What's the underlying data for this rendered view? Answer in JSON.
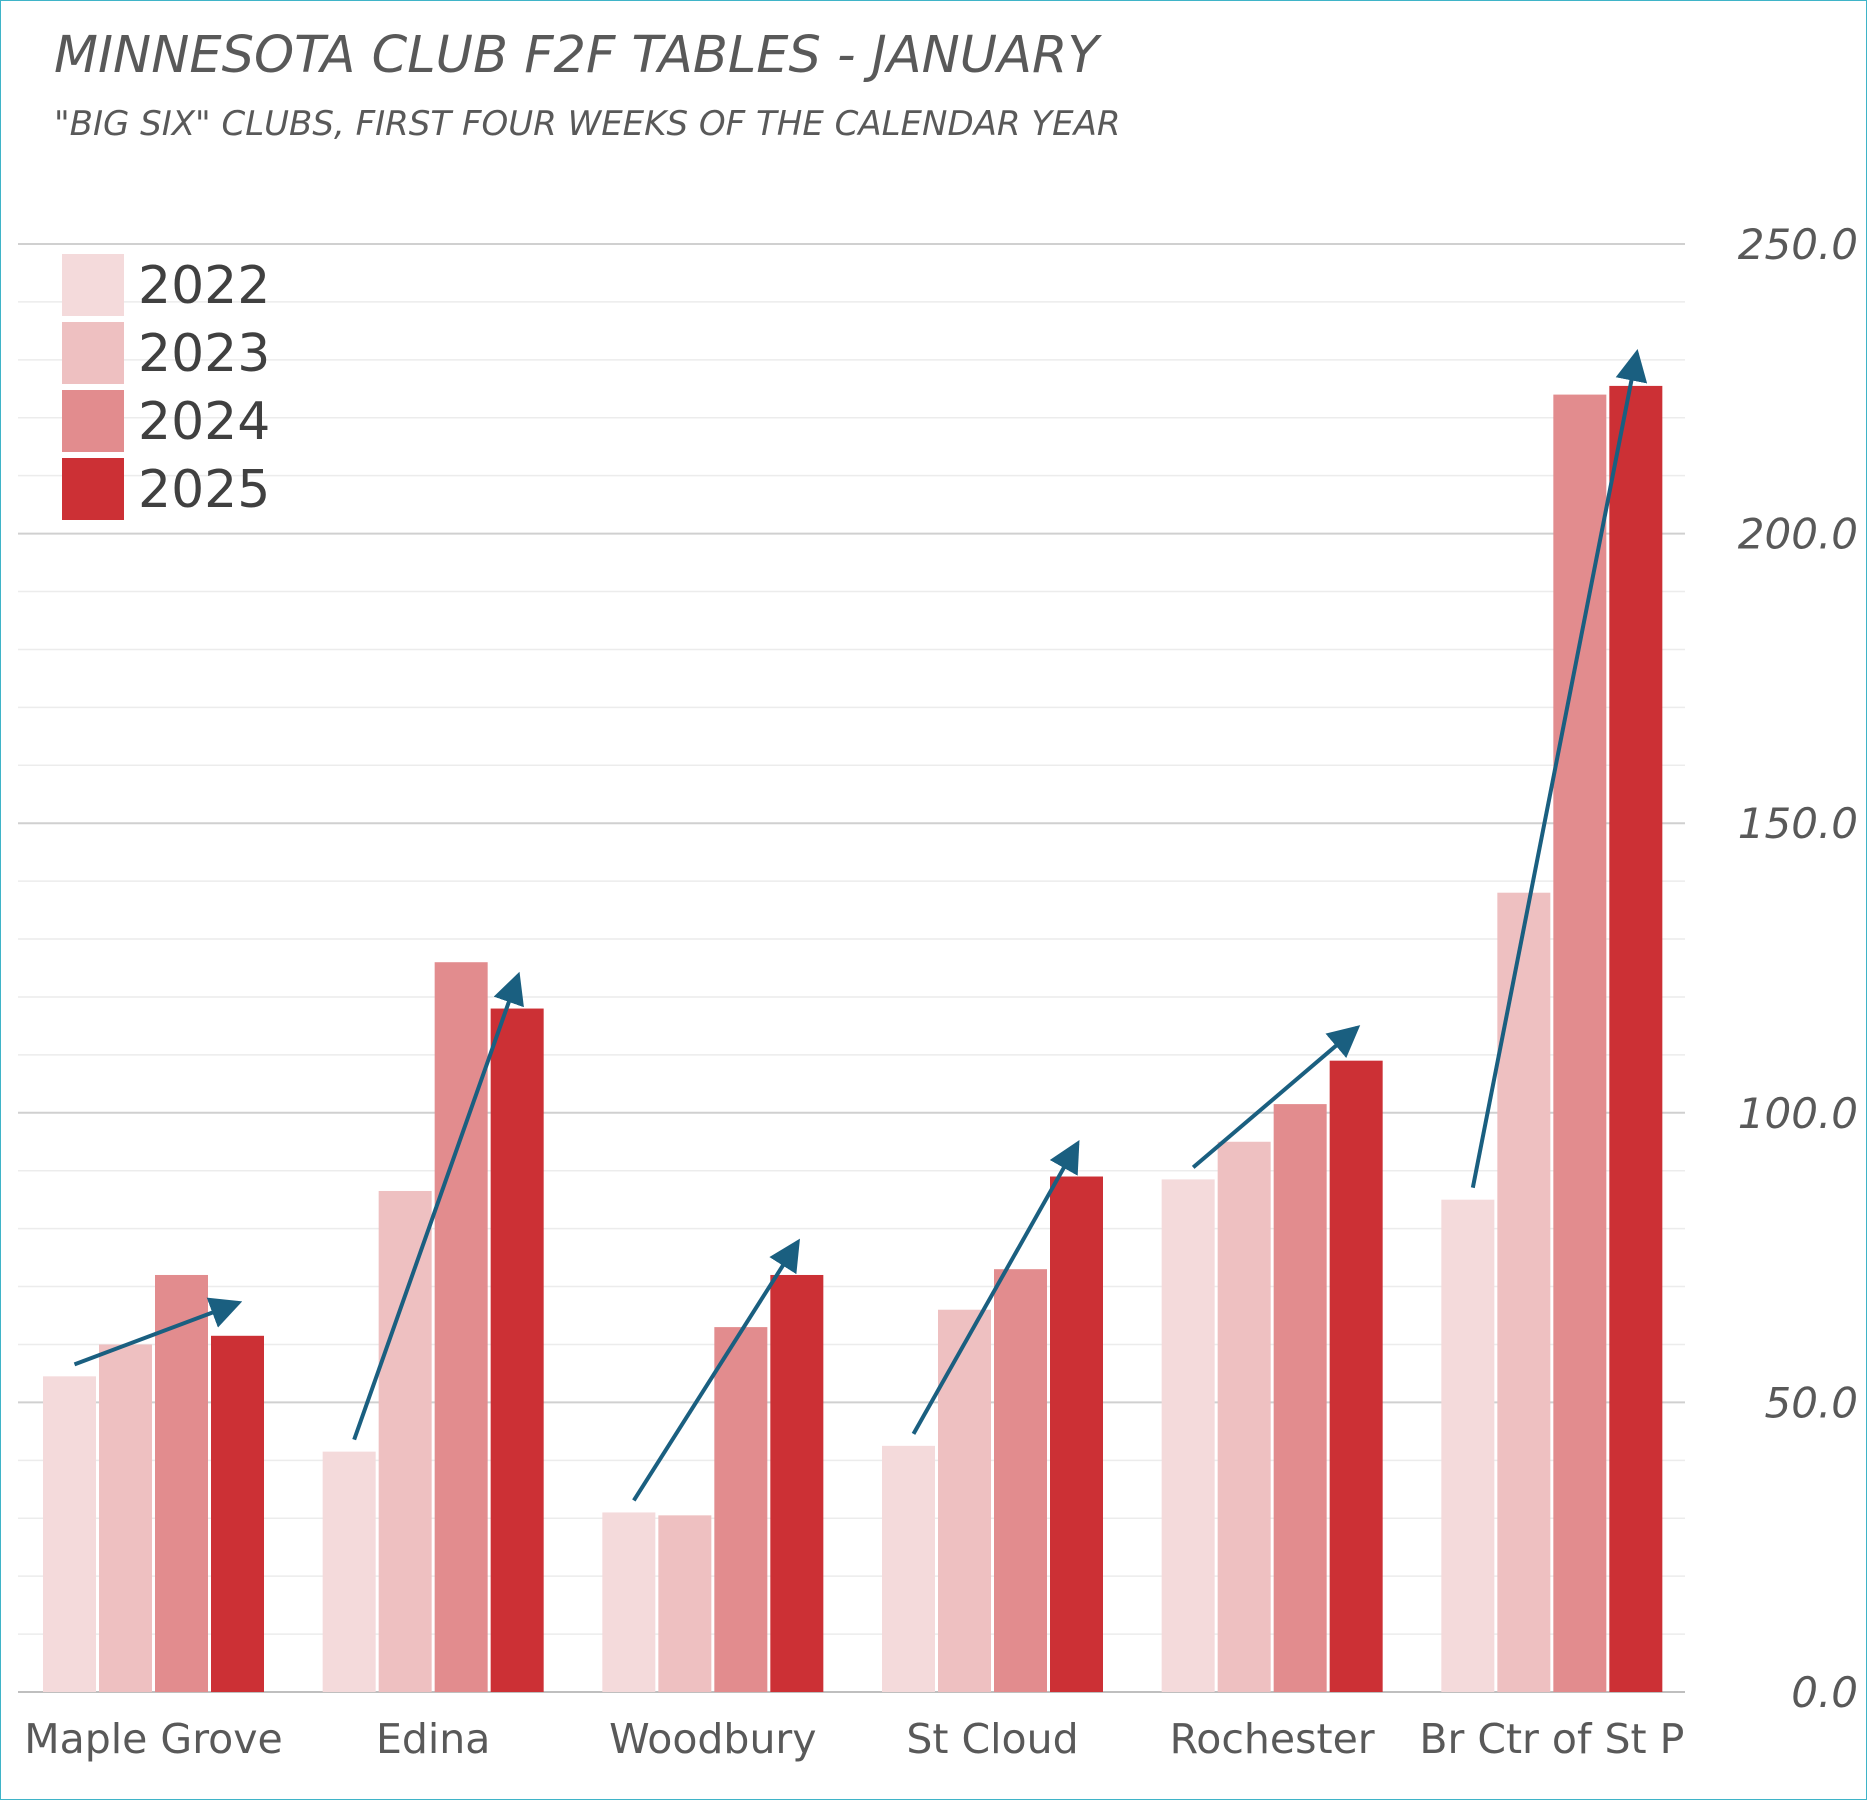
{
  "title": "MINNESOTA CLUB F2F TABLES - JANUARY",
  "subtitle": "\"BIG SIX\" CLUBS, FIRST FOUR WEEKS OF THE CALENDAR YEAR",
  "colors": {
    "frame": "#3fb4c8",
    "arrow": "#1a5f80",
    "gridMajor": "#d0d0d0",
    "gridMinor": "#ececec",
    "series": [
      "#f4dadb",
      "#eec0c1",
      "#e28c8e",
      "#cc3035"
    ]
  },
  "chart_data": {
    "type": "bar",
    "title": "MINNESOTA CLUB F2F TABLES - JANUARY",
    "subtitle": "\"BIG SIX\" CLUBS, FIRST FOUR WEEKS OF THE CALENDAR YEAR",
    "xlabel": "",
    "ylabel": "",
    "categories": [
      "Maple Grove",
      "Edina",
      "Woodbury",
      "St Cloud",
      "Rochester",
      "Br Ctr of St P"
    ],
    "series": [
      {
        "name": "2022",
        "values": [
          54.5,
          41.5,
          31,
          42.5,
          88.5,
          85
        ]
      },
      {
        "name": "2023",
        "values": [
          60,
          86.5,
          30.5,
          66,
          95,
          138
        ]
      },
      {
        "name": "2024",
        "values": [
          72,
          126,
          63,
          73,
          101.5,
          224
        ]
      },
      {
        "name": "2025",
        "values": [
          61.5,
          118,
          72,
          89,
          109,
          225.5
        ]
      }
    ],
    "ylim": [
      0,
      250
    ],
    "yticks": [
      "0.0",
      "50.0",
      "100.0",
      "150.0",
      "200.0",
      "250.0"
    ],
    "y_axis_side": "right",
    "grid": true,
    "legend_position": "top-left",
    "annotations": "trend arrow over each club group, pointing upward from 2022 to 2025"
  }
}
